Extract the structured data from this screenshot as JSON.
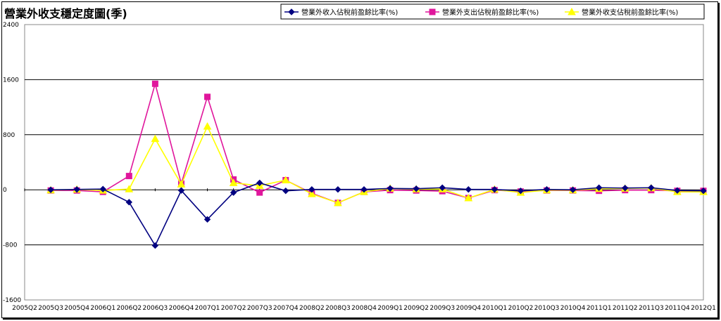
{
  "title": "營業外收支穩定度圖(季)",
  "colors": {
    "series1": "#000080",
    "series2": "#e0169c",
    "series3": "#ffff00"
  },
  "chart_data": {
    "type": "line",
    "title": "營業外收支穩定度圖(季)",
    "xlabel": "",
    "ylabel": "",
    "ylim": [
      -1600,
      2400
    ],
    "yticks": [
      2400,
      1600,
      800,
      0,
      -800,
      -1600
    ],
    "grid": true,
    "legend_position": "top-right",
    "categories": [
      "2005Q2",
      "2005Q3",
      "2005Q4",
      "2006Q1",
      "2006Q2",
      "2006Q3",
      "2006Q4",
      "2007Q1",
      "2007Q2",
      "2007Q3",
      "2007Q4",
      "2008Q2",
      "2008Q3",
      "2008Q4",
      "2009Q1",
      "2009Q2",
      "2009Q3",
      "2009Q4",
      "2010Q1",
      "2010Q2",
      "2010Q3",
      "2010Q4",
      "2011Q1",
      "2011Q2",
      "2011Q3",
      "2011Q4",
      "2012Q1"
    ],
    "series": [
      {
        "name": "營業外收入佔稅前盈餘比率(%)",
        "marker": "diamond",
        "values": [
          null,
          0,
          5,
          10,
          -180,
          -810,
          -10,
          -430,
          -40,
          100,
          -15,
          5,
          5,
          5,
          20,
          15,
          30,
          5,
          5,
          -15,
          5,
          0,
          30,
          25,
          30,
          -10,
          -15
        ]
      },
      {
        "name": "營業外支出佔稅前盈餘比率(%)",
        "marker": "square",
        "values": [
          null,
          -10,
          -10,
          -30,
          200,
          1540,
          90,
          1350,
          150,
          -40,
          140,
          -50,
          -190,
          -30,
          -5,
          -10,
          -20,
          -120,
          -5,
          -25,
          -10,
          -10,
          -15,
          -5,
          -5,
          -15,
          -15
        ]
      },
      {
        "name": "營業外收支佔稅前盈餘比率(%)",
        "marker": "triangle",
        "values": [
          null,
          -5,
          5,
          -10,
          10,
          740,
          80,
          920,
          100,
          60,
          140,
          -60,
          -190,
          -30,
          20,
          10,
          10,
          -120,
          5,
          -40,
          -5,
          -5,
          15,
          20,
          25,
          -30,
          -30
        ]
      }
    ]
  }
}
